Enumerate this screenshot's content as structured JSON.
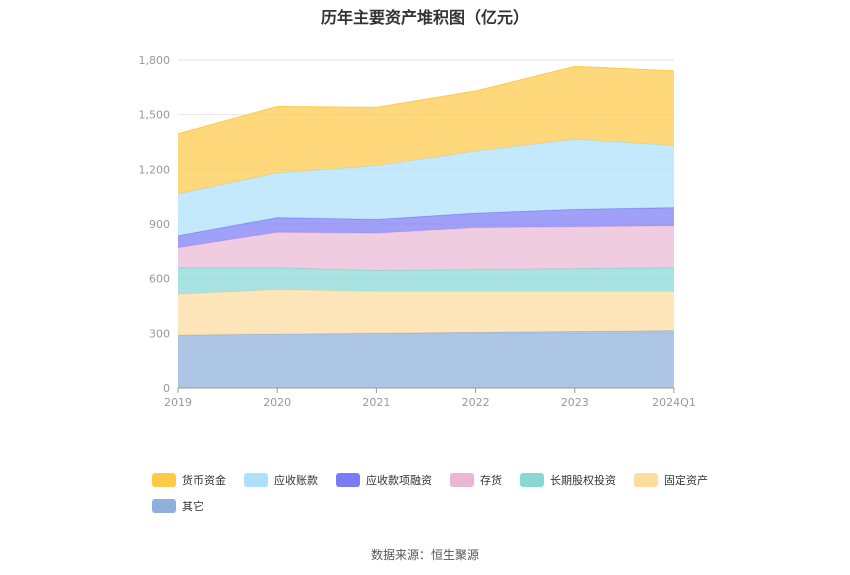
{
  "chart_data": {
    "type": "area",
    "stacked": true,
    "title": "历年主要资产堆积图（亿元）",
    "categories": [
      "2019",
      "2020",
      "2021",
      "2022",
      "2023",
      "2024Q1"
    ],
    "y_ticks": [
      "0",
      "300",
      "600",
      "900",
      "1,200",
      "1,500",
      "1,800"
    ],
    "ylim": [
      0,
      1800
    ],
    "grid": true,
    "legend_position": "bottom",
    "series": [
      {
        "name": "其它",
        "color": "#8fb0dc",
        "values": [
          290,
          295,
          300,
          305,
          310,
          315
        ]
      },
      {
        "name": "固定资产",
        "color": "#fddca0",
        "values": [
          225,
          245,
          230,
          225,
          220,
          215
        ]
      },
      {
        "name": "长期股权投资",
        "color": "#88d8d5",
        "values": [
          145,
          120,
          115,
          120,
          125,
          130
        ]
      },
      {
        "name": "存货",
        "color": "#eab8d4",
        "values": [
          110,
          195,
          205,
          230,
          230,
          230
        ]
      },
      {
        "name": "应收款项融资",
        "color": "#7b7cf5",
        "values": [
          65,
          80,
          75,
          80,
          95,
          100
        ]
      },
      {
        "name": "应收账款",
        "color": "#aee0fb",
        "values": [
          230,
          245,
          295,
          340,
          385,
          340
        ]
      },
      {
        "name": "货币资金",
        "color": "#ffc94a",
        "values": [
          330,
          365,
          320,
          330,
          400,
          410
        ]
      }
    ],
    "legend_order": [
      "货币资金",
      "应收账款",
      "应收款项融资",
      "存货",
      "长期股权投资",
      "固定资产",
      "其它"
    ]
  },
  "source_text": "数据来源：恒生聚源"
}
